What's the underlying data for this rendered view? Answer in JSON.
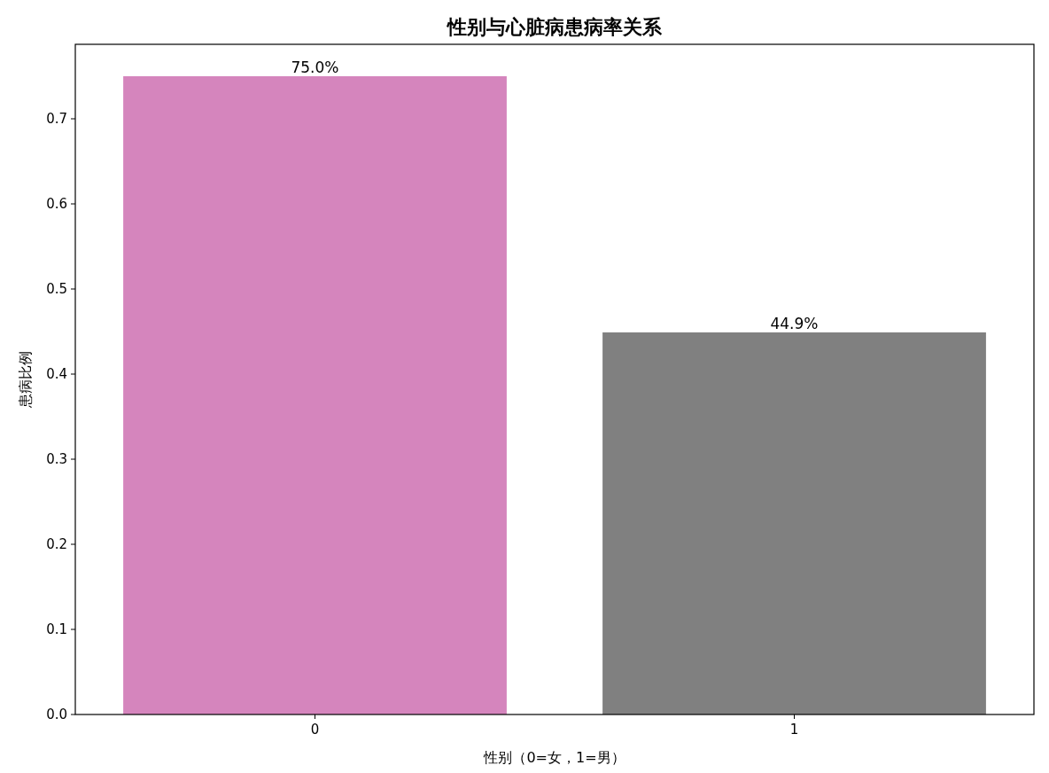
{
  "chart_data": {
    "type": "bar",
    "title": "性别与心脏病患病率关系",
    "xlabel": "性别（0=女，1=男）",
    "ylabel": "患病比例",
    "categories": [
      "0",
      "1"
    ],
    "values": [
      0.75,
      0.449
    ],
    "colors": [
      "#d585bd",
      "#808080"
    ],
    "value_labels": [
      "75.0%",
      "44.9%"
    ],
    "ylim": [
      0,
      0.7875
    ],
    "yticks": [
      {
        "value": 0,
        "label": "0.0"
      },
      0.1,
      0.2,
      0.3,
      0.4,
      0.5,
      0.6,
      0.7
    ],
    "grid": false
  }
}
